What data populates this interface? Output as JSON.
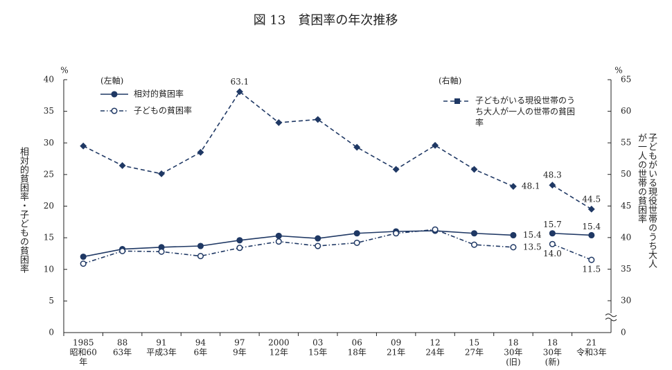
{
  "chart_data": {
    "type": "line",
    "title": "図 13　貧困率の年次推移",
    "y_unit": "%",
    "y2_unit": "%",
    "ylabel": "相対的貧困率・子どもの貧困率",
    "y2label": "子どもがいる現役世帯のうち大人が一人の世帯の貧困率",
    "left_legend_title": "(左軸)",
    "right_legend_title": "(右軸)",
    "categories": [
      [
        "1985",
        "昭和60",
        "年"
      ],
      [
        "88",
        "63年"
      ],
      [
        "91",
        "平成3年"
      ],
      [
        "94",
        "6年"
      ],
      [
        "97",
        "9年"
      ],
      [
        "2000",
        "12年"
      ],
      [
        "03",
        "15年"
      ],
      [
        "06",
        "18年"
      ],
      [
        "09",
        "21年"
      ],
      [
        "12",
        "24年"
      ],
      [
        "15",
        "27年"
      ],
      [
        "18",
        "30年",
        "(旧)"
      ],
      [
        "18",
        "30年",
        "(新)"
      ],
      [
        "21",
        "令和3年"
      ]
    ],
    "breaks": [
      12
    ],
    "ylim": [
      0,
      40
    ],
    "yticks": [
      0,
      5,
      10,
      15,
      20,
      25,
      30,
      35,
      40
    ],
    "y2lim": [
      0,
      65
    ],
    "y2_break": [
      0,
      30
    ],
    "y2ticks": [
      0,
      30,
      35,
      40,
      45,
      50,
      55,
      60,
      65
    ],
    "series": [
      {
        "name": "相対的貧困率",
        "color": "#1f3864",
        "marker": "filled-circle",
        "line": "solid",
        "values": [
          12.0,
          13.2,
          13.5,
          13.7,
          14.6,
          15.3,
          14.9,
          15.7,
          16.0,
          16.1,
          15.7,
          15.4,
          15.7,
          15.4
        ],
        "value_labels": [
          null,
          null,
          null,
          null,
          null,
          null,
          null,
          null,
          null,
          null,
          null,
          "15.4",
          "15.7",
          "15.4"
        ]
      },
      {
        "name": "子どもの貧困率",
        "color": "#1f3864",
        "marker": "open-circle",
        "line": "dashdot",
        "values": [
          10.9,
          12.9,
          12.8,
          12.1,
          13.4,
          14.4,
          13.7,
          14.2,
          15.7,
          16.3,
          13.9,
          13.5,
          14.0,
          11.5
        ],
        "value_labels": [
          null,
          null,
          null,
          null,
          null,
          null,
          null,
          null,
          null,
          null,
          null,
          "13.5",
          "14.0",
          "11.5"
        ]
      },
      {
        "name": "子どもがいる現役世帯のうち大人が一人の世帯の貧困率",
        "color": "#1f3864",
        "marker": "square",
        "line": "dashed",
        "axis": "y2",
        "values": [
          54.5,
          51.4,
          50.1,
          53.5,
          63.1,
          58.2,
          58.7,
          54.3,
          50.8,
          54.6,
          50.8,
          48.1,
          48.3,
          44.5
        ],
        "value_labels": [
          null,
          null,
          null,
          null,
          "63.1",
          null,
          null,
          null,
          null,
          null,
          null,
          "48.1",
          "48.3",
          "44.5"
        ]
      }
    ]
  }
}
